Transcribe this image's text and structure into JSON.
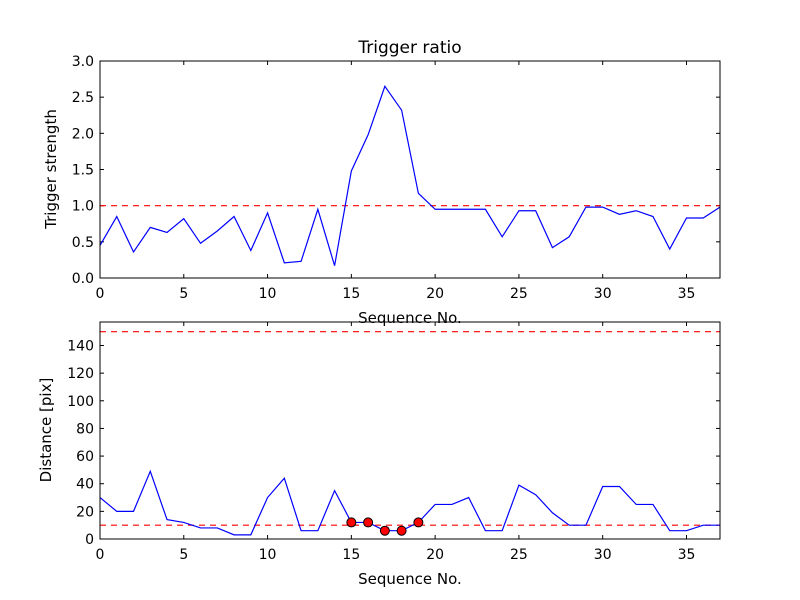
{
  "chart_data": [
    {
      "type": "line",
      "title": "Trigger ratio",
      "xlabel": "Sequence No.",
      "ylabel": "Trigger strength",
      "xlim": [
        0,
        37
      ],
      "ylim": [
        0,
        3.0
      ],
      "xticks": [
        0,
        5,
        10,
        15,
        20,
        25,
        30,
        35
      ],
      "xtick_labels": [
        "0",
        "5",
        "10",
        "15",
        "20",
        "25",
        "30",
        "35"
      ],
      "yticks": [
        0,
        0.5,
        1.0,
        1.5,
        2.0,
        2.5,
        3.0
      ],
      "ytick_labels": [
        "0.0",
        "0.5",
        "1.0",
        "1.5",
        "2.0",
        "2.5",
        "3.0"
      ],
      "series": [
        {
          "color": "#0000ff",
          "x": [
            0,
            1,
            2,
            3,
            4,
            5,
            6,
            7,
            8,
            9,
            10,
            11,
            12,
            13,
            14,
            15,
            16,
            17,
            18,
            19,
            20,
            21,
            22,
            23,
            24,
            25,
            26,
            27,
            28,
            29,
            30,
            31,
            32,
            33,
            34,
            35,
            36,
            37
          ],
          "values": [
            0.45,
            0.85,
            0.36,
            0.7,
            0.63,
            0.82,
            0.48,
            0.65,
            0.85,
            0.38,
            0.9,
            0.21,
            0.23,
            0.95,
            0.17,
            1.48,
            1.98,
            2.65,
            2.32,
            1.17,
            0.95,
            0.95,
            0.95,
            0.95,
            0.57,
            0.93,
            0.93,
            0.42,
            0.57,
            0.98,
            0.98,
            0.88,
            0.93,
            0.85,
            0.4,
            0.83,
            0.83,
            0.98
          ]
        }
      ],
      "thresholds": [
        {
          "y": 1.0,
          "color": "#ff0000",
          "style": "dashed"
        }
      ],
      "grid": false
    },
    {
      "type": "line",
      "title": "",
      "xlabel": "Sequence No.",
      "ylabel": "Distance [pix]",
      "xlim": [
        0,
        37
      ],
      "ylim": [
        0,
        157
      ],
      "xticks": [
        0,
        5,
        10,
        15,
        20,
        25,
        30,
        35
      ],
      "xtick_labels": [
        "0",
        "5",
        "10",
        "15",
        "20",
        "25",
        "30",
        "35"
      ],
      "yticks": [
        0,
        20,
        40,
        60,
        80,
        100,
        120,
        140
      ],
      "ytick_labels": [
        "0",
        "20",
        "40",
        "60",
        "80",
        "100",
        "120",
        "140"
      ],
      "series": [
        {
          "color": "#0000ff",
          "x": [
            0,
            1,
            2,
            3,
            4,
            5,
            6,
            7,
            8,
            9,
            10,
            11,
            12,
            13,
            14,
            15,
            16,
            17,
            18,
            19,
            20,
            21,
            22,
            23,
            24,
            25,
            26,
            27,
            28,
            29,
            30,
            31,
            32,
            33,
            34,
            35,
            36,
            37
          ],
          "values": [
            30,
            20,
            20,
            49,
            14,
            12,
            8,
            8,
            3,
            3,
            30,
            44,
            6,
            6,
            35,
            12,
            12,
            6,
            6,
            12,
            25,
            25,
            30,
            6,
            6,
            39,
            32,
            19,
            10,
            10,
            38,
            38,
            25,
            25,
            6,
            6,
            10,
            10
          ]
        }
      ],
      "markers": {
        "color": "#ff0000",
        "x": [
          15,
          16,
          17,
          18,
          19
        ],
        "values": [
          12,
          12,
          6,
          6,
          12
        ]
      },
      "thresholds": [
        {
          "y": 10,
          "color": "#ff0000",
          "style": "dashed"
        },
        {
          "y": 150,
          "color": "#ff0000",
          "style": "dashed"
        }
      ],
      "grid": false
    }
  ]
}
